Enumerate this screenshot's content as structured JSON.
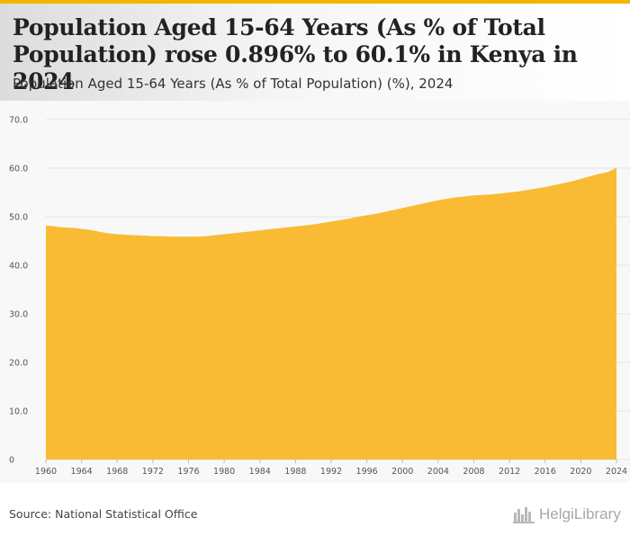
{
  "header": {
    "title": "Population Aged 15-64 Years (As % of Total Population) rose 0.896% to 60.1% in Kenya in 2024",
    "subtitle": "Population Aged 15-64 Years (As % of Total Population) (%), 2024"
  },
  "footer": {
    "source": "Source: National Statistical Office",
    "logo_text": "HelgiLibrary",
    "logo_icon": "city-skyline-icon"
  },
  "colors": {
    "accent": "#f4b400",
    "area_fill": "#f8bb33",
    "grid": "#e4e4e4"
  },
  "chart_data": {
    "type": "area",
    "title": "Population Aged 15-64 Years (As % of Total Population) rose 0.896% to 60.1% in Kenya in 2024",
    "subtitle": "Population Aged 15-64 Years (As % of Total Population) (%), 2024",
    "xlabel": "",
    "ylabel": "",
    "ylim": [
      0,
      70
    ],
    "yticks": [
      "0",
      "10.0",
      "20.0",
      "30.0",
      "40.0",
      "50.0",
      "60.0",
      "70.0"
    ],
    "xticks": [
      "1960",
      "1964",
      "1968",
      "1972",
      "1976",
      "1980",
      "1984",
      "1988",
      "1992",
      "1996",
      "2000",
      "2004",
      "2008",
      "2012",
      "2016",
      "2020",
      "2024"
    ],
    "grid": true,
    "legend": "none",
    "x": [
      1960,
      1961,
      1962,
      1963,
      1964,
      1965,
      1966,
      1967,
      1968,
      1969,
      1970,
      1971,
      1972,
      1973,
      1974,
      1975,
      1976,
      1977,
      1978,
      1979,
      1980,
      1981,
      1982,
      1983,
      1984,
      1985,
      1986,
      1987,
      1988,
      1989,
      1990,
      1991,
      1992,
      1993,
      1994,
      1995,
      1996,
      1997,
      1998,
      1999,
      2000,
      2001,
      2002,
      2003,
      2004,
      2005,
      2006,
      2007,
      2008,
      2009,
      2010,
      2011,
      2012,
      2013,
      2014,
      2015,
      2016,
      2017,
      2018,
      2019,
      2020,
      2021,
      2022,
      2023,
      2024
    ],
    "y": [
      48.2,
      48.0,
      47.8,
      47.7,
      47.5,
      47.3,
      46.9,
      46.6,
      46.4,
      46.3,
      46.2,
      46.1,
      46.0,
      46.0,
      45.9,
      45.9,
      45.9,
      45.9,
      46.0,
      46.2,
      46.4,
      46.6,
      46.8,
      47.0,
      47.2,
      47.4,
      47.6,
      47.8,
      48.0,
      48.2,
      48.4,
      48.7,
      49.0,
      49.3,
      49.6,
      50.0,
      50.3,
      50.6,
      51.0,
      51.4,
      51.8,
      52.2,
      52.6,
      53.0,
      53.4,
      53.7,
      54.0,
      54.2,
      54.4,
      54.5,
      54.6,
      54.8,
      55.0,
      55.2,
      55.5,
      55.8,
      56.1,
      56.5,
      56.9,
      57.3,
      57.8,
      58.3,
      58.8,
      59.2,
      60.1
    ]
  }
}
